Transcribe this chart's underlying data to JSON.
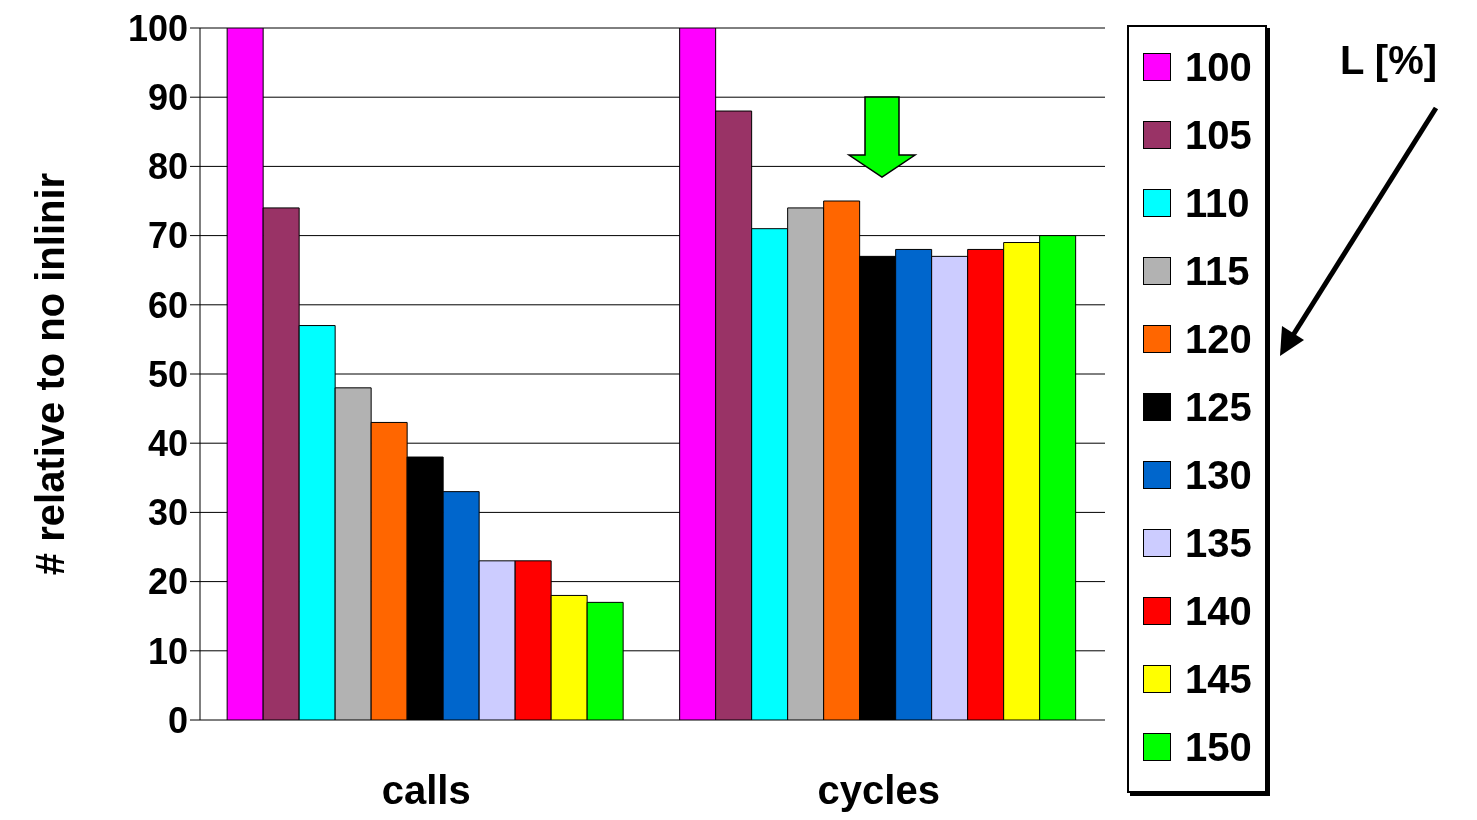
{
  "chart_data": {
    "type": "bar",
    "ylabel": "# relative to no inlinir",
    "legend_title": "L [%]",
    "categories": [
      "calls",
      "cycles"
    ],
    "series": [
      {
        "name": "100",
        "color": "#ff00ff",
        "values": [
          100,
          100
        ]
      },
      {
        "name": "105",
        "color": "#993366",
        "values": [
          74,
          88
        ]
      },
      {
        "name": "110",
        "color": "#00ffff",
        "values": [
          57,
          71
        ]
      },
      {
        "name": "115",
        "color": "#b2b2b2",
        "values": [
          48,
          74
        ]
      },
      {
        "name": "120",
        "color": "#ff6600",
        "values": [
          43,
          75
        ]
      },
      {
        "name": "125",
        "color": "#000000",
        "values": [
          38,
          67
        ]
      },
      {
        "name": "130",
        "color": "#0066cc",
        "values": [
          33,
          68
        ]
      },
      {
        "name": "135",
        "color": "#ccccff",
        "values": [
          23,
          67
        ]
      },
      {
        "name": "140",
        "color": "#ff0000",
        "values": [
          23,
          68
        ]
      },
      {
        "name": "145",
        "color": "#ffff00",
        "values": [
          18,
          69
        ]
      },
      {
        "name": "150",
        "color": "#00ff00",
        "values": [
          17,
          70
        ]
      }
    ],
    "ylim": [
      0,
      100
    ],
    "yticks": [
      0,
      10,
      20,
      30,
      40,
      50,
      60,
      70,
      80,
      90,
      100
    ],
    "grid": "y",
    "legend": "right"
  }
}
